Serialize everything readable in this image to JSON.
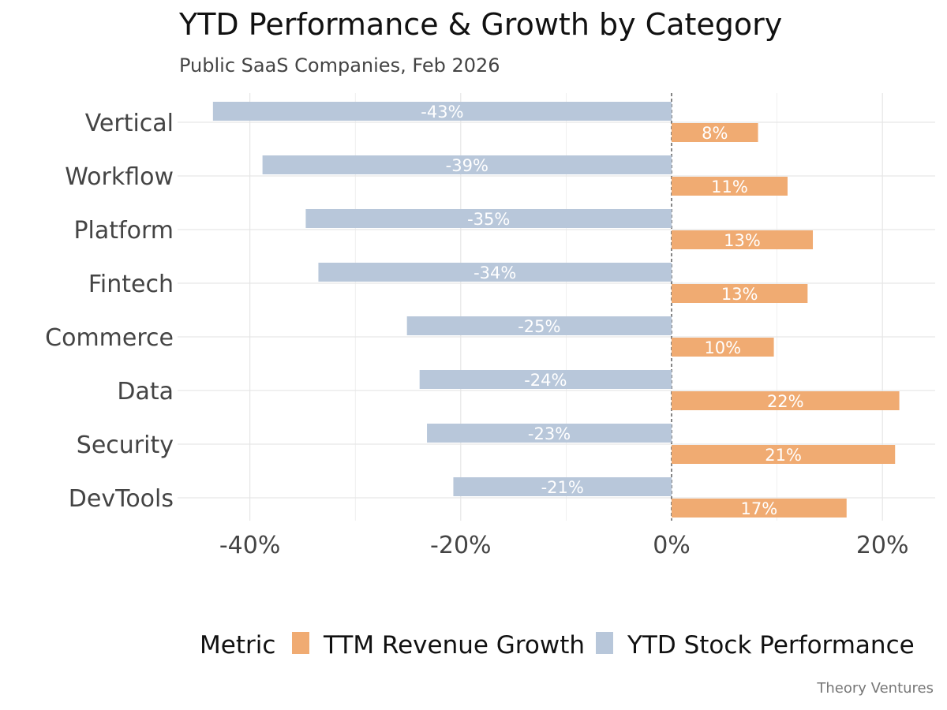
{
  "chart_data": {
    "type": "bar",
    "orientation": "horizontal",
    "title": "YTD Performance & Growth by Category",
    "subtitle": "Public SaaS Companies, Feb 2026",
    "caption": "Theory Ventures",
    "categories": [
      "Vertical",
      "Workflow",
      "Platform",
      "Fintech",
      "Commerce",
      "Data",
      "Security",
      "DevTools"
    ],
    "series": [
      {
        "name": "YTD Stock Performance",
        "color": "#b8c7da",
        "values": [
          -43.5,
          -38.8,
          -34.7,
          -33.5,
          -25.1,
          -23.9,
          -23.2,
          -20.7
        ],
        "labels": [
          "-43%",
          "-39%",
          "-35%",
          "-34%",
          "-25%",
          "-24%",
          "-23%",
          "-21%"
        ]
      },
      {
        "name": "TTM Revenue Growth",
        "color": "#f0ab72",
        "values": [
          8.2,
          11.0,
          13.4,
          12.9,
          9.7,
          21.6,
          21.2,
          16.6
        ],
        "labels": [
          "8%",
          "11%",
          "13%",
          "13%",
          "10%",
          "22%",
          "21%",
          "17%"
        ]
      }
    ],
    "xlim": [
      -47,
      25
    ],
    "xticks": [
      -40,
      -20,
      0,
      20
    ],
    "xtick_labels": [
      "-40%",
      "-20%",
      "0%",
      "20%"
    ],
    "xlabel": "",
    "ylabel": "",
    "grid": true,
    "zero_line": "dashed",
    "legend": {
      "title": "Metric",
      "position": "bottom",
      "entries": [
        "TTM Revenue Growth",
        "YTD Stock Performance"
      ]
    }
  }
}
